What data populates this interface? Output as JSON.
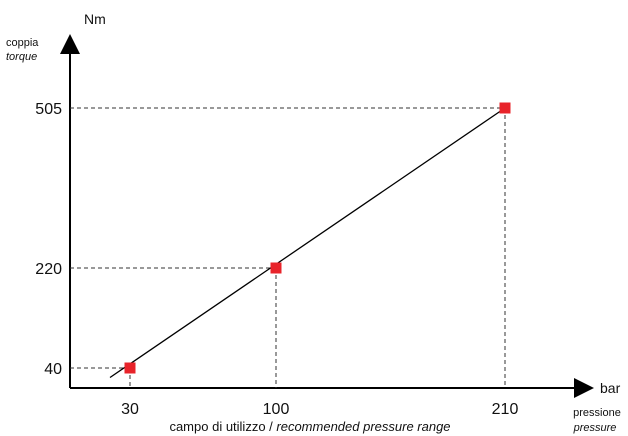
{
  "chart_data": {
    "type": "line",
    "y_unit": "Nm",
    "y_label": "coppia",
    "y_label_en": "torque",
    "x_unit": "bar",
    "x_label": "pressione",
    "x_label_en": "pressure",
    "range_caption_it": "campo di utilizzo / ",
    "range_caption_en": "recommended pressure range",
    "x_ticks": [
      30,
      100,
      210
    ],
    "y_ticks": [
      40,
      220,
      505
    ],
    "points": [
      {
        "x": 30,
        "y": 40
      },
      {
        "x": 100,
        "y": 220
      },
      {
        "x": 210,
        "y": 505
      }
    ],
    "line_start": {
      "x": 20,
      "y": 21
    },
    "marker_color": "#e8232a",
    "line_color": "#000000",
    "reference_lines": "dashed"
  }
}
